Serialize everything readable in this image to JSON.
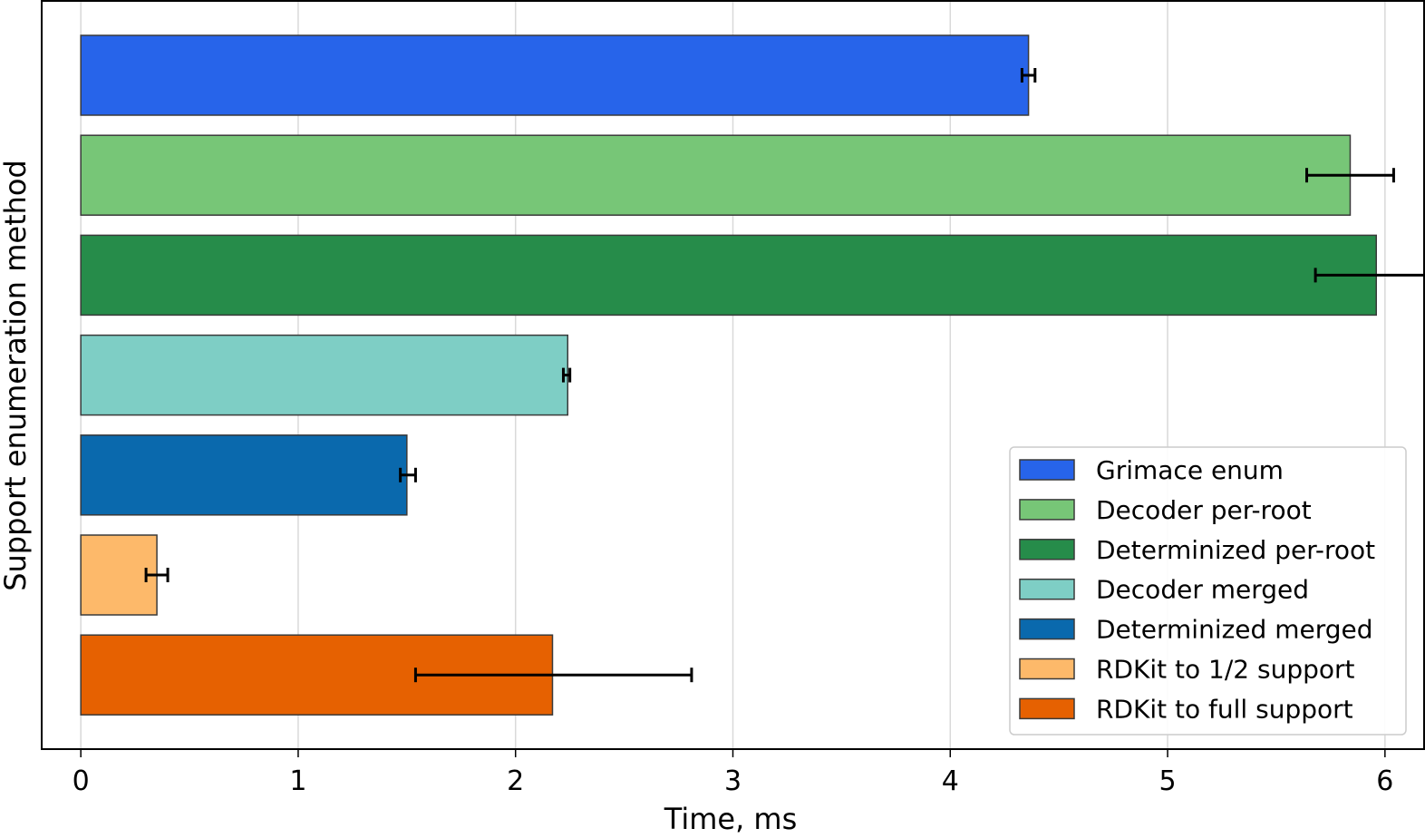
{
  "chart_data": {
    "type": "bar",
    "orientation": "horizontal",
    "xlabel": "Time, ms",
    "ylabel": "Support enumeration method",
    "xlim": [
      -0.18,
      6.18
    ],
    "xticks": [
      0,
      1,
      2,
      3,
      4,
      5,
      6
    ],
    "xtick_labels": [
      "0",
      "1",
      "2",
      "3",
      "4",
      "5",
      "6"
    ],
    "grid": "vertical",
    "legend_position": "lower-right",
    "series": [
      {
        "name": "Grimace enum",
        "value": 4.36,
        "err_low": 4.33,
        "err_high": 4.39,
        "color": "#2764EA"
      },
      {
        "name": "Decoder per-root",
        "value": 5.84,
        "err_low": 5.64,
        "err_high": 6.04,
        "color": "#77C677"
      },
      {
        "name": "Determinized per-root",
        "value": 5.96,
        "err_low": 5.68,
        "err_high": 6.24,
        "color": "#268C4A"
      },
      {
        "name": "Decoder merged",
        "value": 2.24,
        "err_low": 2.22,
        "err_high": 2.25,
        "color": "#7ECEC5"
      },
      {
        "name": "Determinized merged",
        "value": 1.5,
        "err_low": 1.47,
        "err_high": 1.54,
        "color": "#0A69AD"
      },
      {
        "name": "RDKit to 1/2 support",
        "value": 0.35,
        "err_low": 0.3,
        "err_high": 0.4,
        "color": "#FDB96A"
      },
      {
        "name": "RDKit to full support",
        "value": 2.17,
        "err_low": 1.54,
        "err_high": 2.81,
        "color": "#E66101"
      }
    ]
  }
}
